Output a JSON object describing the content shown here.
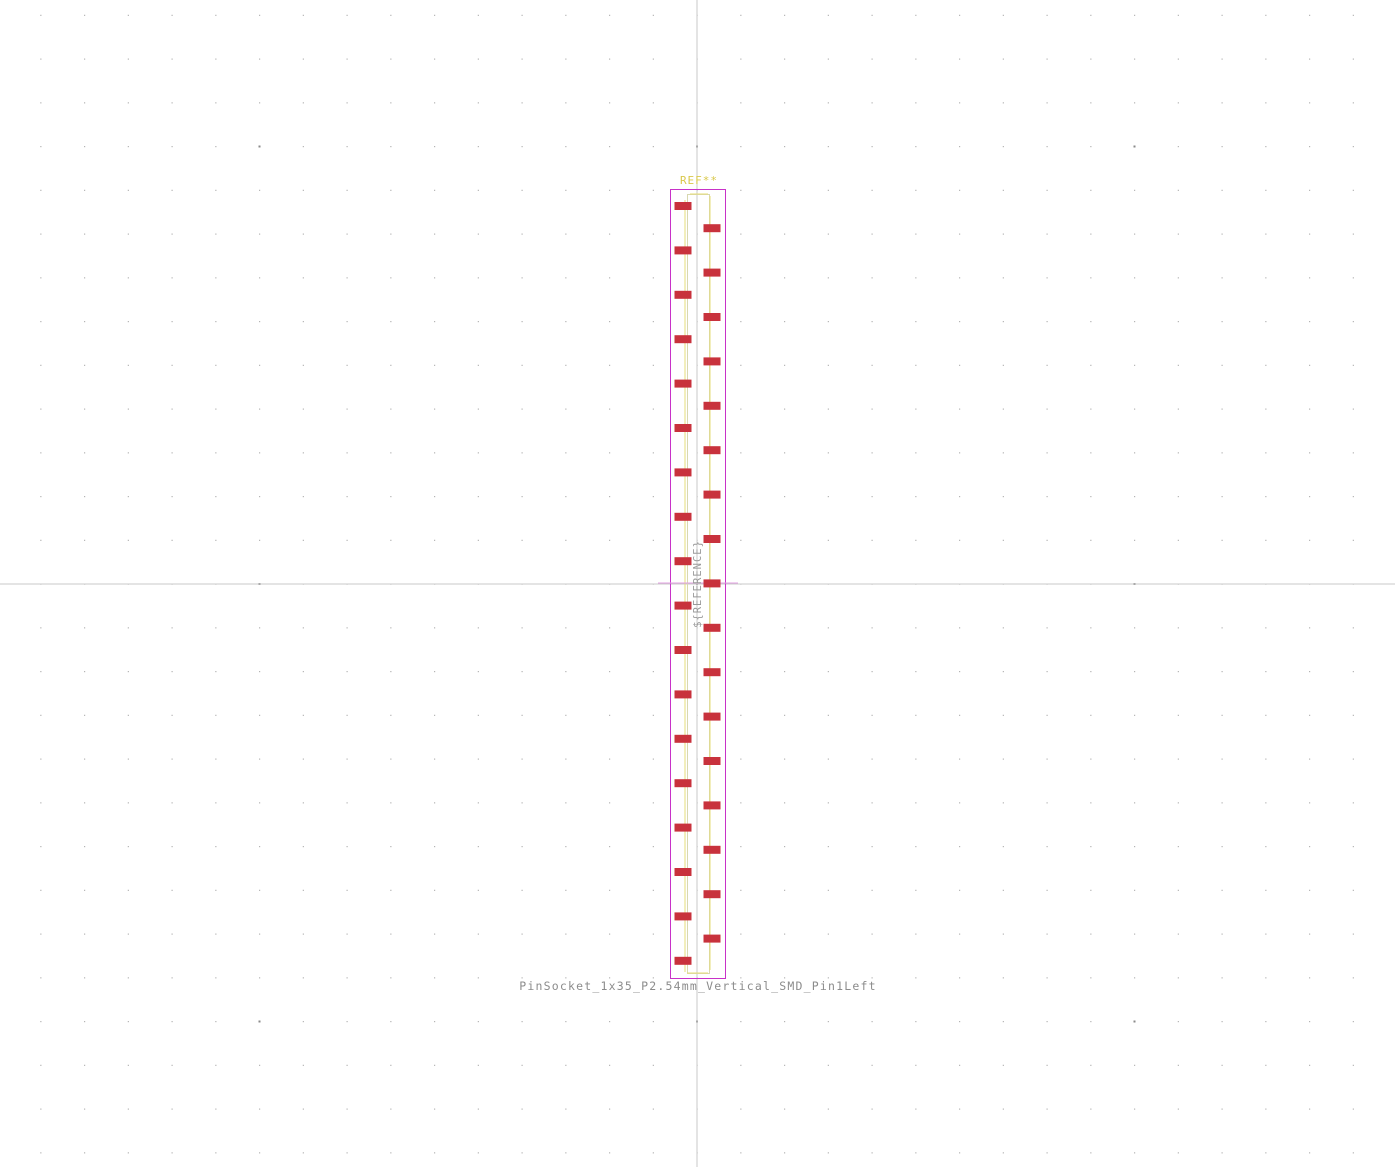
{
  "footprint": {
    "reference": "REF**",
    "value": "PinSocket_1x35_P2.54mm_Vertical_SMD_Pin1Left",
    "fab_reference": "${REFERENCE}",
    "pin_count": 35
  },
  "colors": {
    "background": "#ffffff",
    "grid_dot": "#b4b4b4",
    "grid_dot_major": "#8a8a8a",
    "crosshair": "#c8c8c8",
    "courtyard": "#c832c8",
    "silkscreen": "#e2d36a",
    "fab_outline": "#c8c8a0",
    "pad": "#c8323c"
  }
}
